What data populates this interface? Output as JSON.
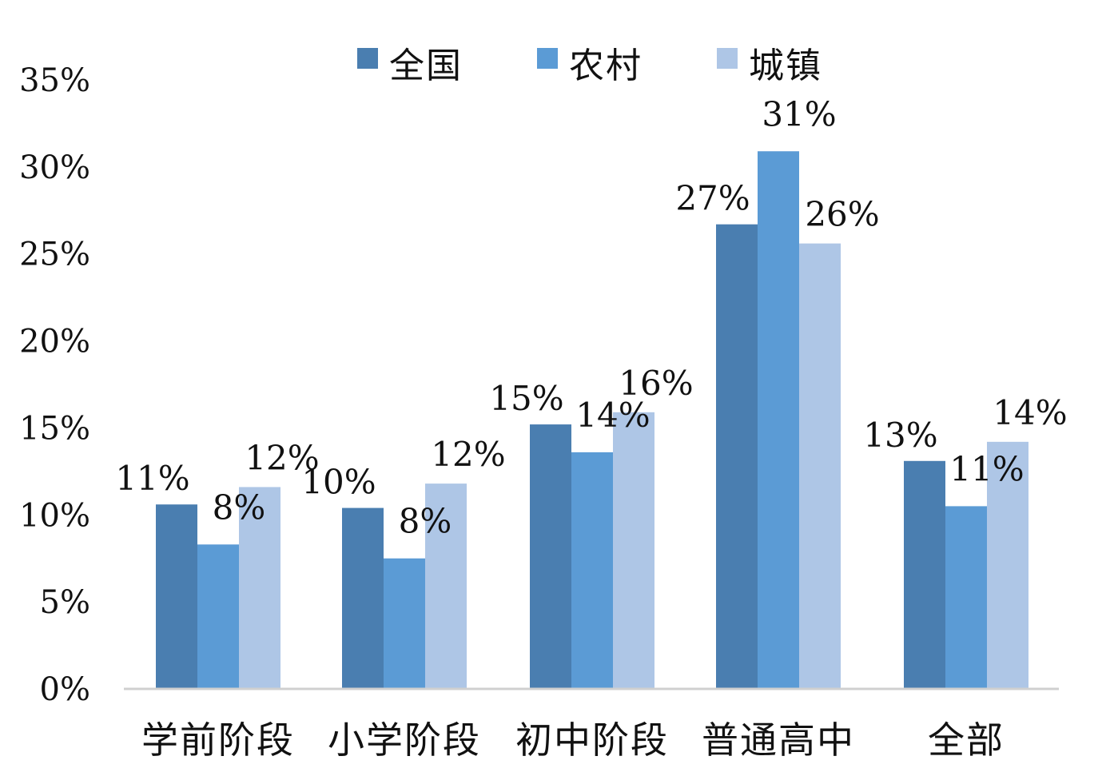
{
  "chart_data": {
    "type": "bar",
    "categories": [
      "学前阶段",
      "小学阶段",
      "初中阶段",
      "普通高中",
      "全部"
    ],
    "series": [
      {
        "name": "全国",
        "color": "#4a7eb0",
        "values": [
          10.6,
          10.4,
          15.2,
          26.7,
          13.1
        ],
        "labels": [
          "11%",
          "10%",
          "15%",
          "27%",
          "13%"
        ]
      },
      {
        "name": "农村",
        "color": "#5b9bd5",
        "values": [
          8.3,
          7.5,
          13.6,
          30.9,
          10.5
        ],
        "labels": [
          "8%",
          "8%",
          "14%",
          "31%",
          "11%"
        ]
      },
      {
        "name": "城镇",
        "color": "#aec6e6",
        "values": [
          11.6,
          11.8,
          15.9,
          25.6,
          14.2
        ],
        "labels": [
          "12%",
          "12%",
          "16%",
          "26%",
          "14%"
        ]
      }
    ],
    "yticks": [
      "0%",
      "5%",
      "10%",
      "15%",
      "20%",
      "25%",
      "30%",
      "35%"
    ],
    "ylim": [
      0,
      35
    ],
    "legend_position": "top",
    "grid": false
  }
}
